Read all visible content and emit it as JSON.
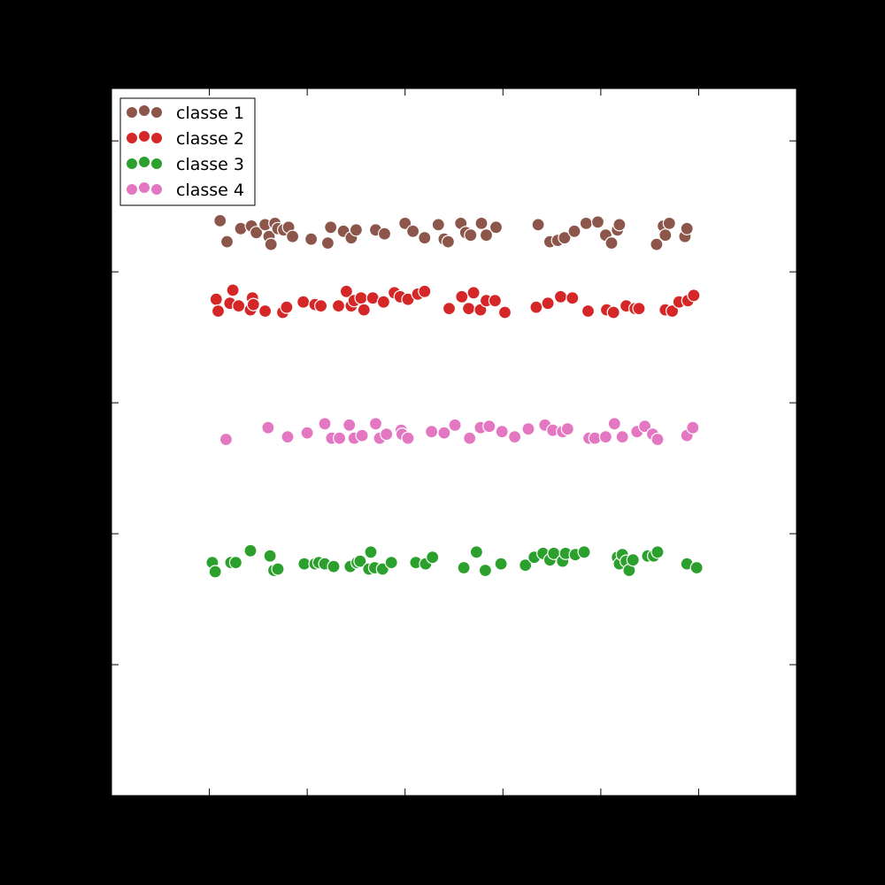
{
  "chart_data": {
    "type": "scatter",
    "xlim": [
      -1,
      6
    ],
    "ylim": [
      0,
      5.4
    ],
    "xticks": [
      0,
      1,
      2,
      3,
      4,
      5
    ],
    "yticks": [
      1,
      2,
      3,
      4,
      5
    ],
    "tick_labels_visible": false,
    "grid": false,
    "legend": "top-left",
    "series": [
      {
        "name": "classe 1",
        "color": "#8c564b",
        "points": [
          [
            0.11,
            4.39
          ],
          [
            0.18,
            4.23
          ],
          [
            0.32,
            4.33
          ],
          [
            0.43,
            4.35
          ],
          [
            0.48,
            4.3
          ],
          [
            0.57,
            4.36
          ],
          [
            0.61,
            4.27
          ],
          [
            0.63,
            4.21
          ],
          [
            0.67,
            4.37
          ],
          [
            0.7,
            4.33
          ],
          [
            0.76,
            4.32
          ],
          [
            0.81,
            4.34
          ],
          [
            0.85,
            4.27
          ],
          [
            1.04,
            4.25
          ],
          [
            1.21,
            4.22
          ],
          [
            1.24,
            4.34
          ],
          [
            1.37,
            4.31
          ],
          [
            1.45,
            4.26
          ],
          [
            1.5,
            4.32
          ],
          [
            1.7,
            4.32
          ],
          [
            1.79,
            4.29
          ],
          [
            2.0,
            4.37
          ],
          [
            2.08,
            4.31
          ],
          [
            2.2,
            4.26
          ],
          [
            2.34,
            4.36
          ],
          [
            2.4,
            4.25
          ],
          [
            2.44,
            4.23
          ],
          [
            2.57,
            4.37
          ],
          [
            2.62,
            4.3
          ],
          [
            2.67,
            4.28
          ],
          [
            2.78,
            4.37
          ],
          [
            2.83,
            4.28
          ],
          [
            2.93,
            4.34
          ],
          [
            3.36,
            4.36
          ],
          [
            3.48,
            4.23
          ],
          [
            3.56,
            4.24
          ],
          [
            3.63,
            4.26
          ],
          [
            3.73,
            4.31
          ],
          [
            3.85,
            4.37
          ],
          [
            3.97,
            4.38
          ],
          [
            4.05,
            4.28
          ],
          [
            4.11,
            4.22
          ],
          [
            4.17,
            4.32
          ],
          [
            4.19,
            4.36
          ],
          [
            4.57,
            4.21
          ],
          [
            4.64,
            4.35
          ],
          [
            4.66,
            4.28
          ],
          [
            4.7,
            4.37
          ],
          [
            4.86,
            4.27
          ],
          [
            4.88,
            4.33
          ]
        ]
      },
      {
        "name": "classe 2",
        "color": "#d62728",
        "points": [
          [
            0.07,
            3.79
          ],
          [
            0.09,
            3.7
          ],
          [
            0.21,
            3.76
          ],
          [
            0.24,
            3.86
          ],
          [
            0.3,
            3.74
          ],
          [
            0.42,
            3.71
          ],
          [
            0.44,
            3.8
          ],
          [
            0.45,
            3.75
          ],
          [
            0.57,
            3.7
          ],
          [
            0.75,
            3.69
          ],
          [
            0.79,
            3.73
          ],
          [
            0.96,
            3.77
          ],
          [
            1.08,
            3.75
          ],
          [
            1.14,
            3.74
          ],
          [
            1.32,
            3.74
          ],
          [
            1.4,
            3.85
          ],
          [
            1.45,
            3.74
          ],
          [
            1.48,
            3.78
          ],
          [
            1.55,
            3.8
          ],
          [
            1.58,
            3.71
          ],
          [
            1.67,
            3.8
          ],
          [
            1.78,
            3.77
          ],
          [
            1.89,
            3.84
          ],
          [
            1.95,
            3.81
          ],
          [
            2.03,
            3.79
          ],
          [
            2.13,
            3.83
          ],
          [
            2.2,
            3.85
          ],
          [
            2.45,
            3.72
          ],
          [
            2.58,
            3.81
          ],
          [
            2.65,
            3.72
          ],
          [
            2.7,
            3.84
          ],
          [
            2.77,
            3.71
          ],
          [
            2.83,
            3.78
          ],
          [
            2.92,
            3.78
          ],
          [
            3.02,
            3.69
          ],
          [
            3.34,
            3.73
          ],
          [
            3.46,
            3.76
          ],
          [
            3.59,
            3.81
          ],
          [
            3.71,
            3.8
          ],
          [
            3.87,
            3.7
          ],
          [
            4.06,
            3.71
          ],
          [
            4.13,
            3.69
          ],
          [
            4.26,
            3.74
          ],
          [
            4.35,
            3.72
          ],
          [
            4.39,
            3.72
          ],
          [
            4.66,
            3.71
          ],
          [
            4.73,
            3.7
          ],
          [
            4.8,
            3.77
          ],
          [
            4.89,
            3.78
          ],
          [
            4.95,
            3.82
          ]
        ]
      },
      {
        "name": "classe 3",
        "color": "#2ca02c",
        "points": [
          [
            0.03,
            1.78
          ],
          [
            0.06,
            1.71
          ],
          [
            0.22,
            1.78
          ],
          [
            0.27,
            1.78
          ],
          [
            0.42,
            1.87
          ],
          [
            0.62,
            1.83
          ],
          [
            0.66,
            1.72
          ],
          [
            0.7,
            1.73
          ],
          [
            0.97,
            1.77
          ],
          [
            1.08,
            1.77
          ],
          [
            1.12,
            1.78
          ],
          [
            1.18,
            1.77
          ],
          [
            1.27,
            1.75
          ],
          [
            1.44,
            1.75
          ],
          [
            1.51,
            1.78
          ],
          [
            1.54,
            1.79
          ],
          [
            1.63,
            1.73
          ],
          [
            1.65,
            1.86
          ],
          [
            1.69,
            1.74
          ],
          [
            1.77,
            1.73
          ],
          [
            1.86,
            1.78
          ],
          [
            2.11,
            1.78
          ],
          [
            2.21,
            1.77
          ],
          [
            2.28,
            1.82
          ],
          [
            2.6,
            1.74
          ],
          [
            2.73,
            1.86
          ],
          [
            2.82,
            1.72
          ],
          [
            2.98,
            1.77
          ],
          [
            3.23,
            1.76
          ],
          [
            3.32,
            1.82
          ],
          [
            3.41,
            1.85
          ],
          [
            3.48,
            1.8
          ],
          [
            3.52,
            1.85
          ],
          [
            3.61,
            1.79
          ],
          [
            3.64,
            1.85
          ],
          [
            3.74,
            1.84
          ],
          [
            3.83,
            1.86
          ],
          [
            4.17,
            1.82
          ],
          [
            4.19,
            1.77
          ],
          [
            4.22,
            1.84
          ],
          [
            4.26,
            1.79
          ],
          [
            4.29,
            1.72
          ],
          [
            4.33,
            1.8
          ],
          [
            4.48,
            1.83
          ],
          [
            4.54,
            1.83
          ],
          [
            4.58,
            1.86
          ],
          [
            4.88,
            1.77
          ],
          [
            4.98,
            1.74
          ]
        ]
      },
      {
        "name": "classe 4",
        "color": "#e377c2",
        "points": [
          [
            0.17,
            2.72
          ],
          [
            0.6,
            2.81
          ],
          [
            0.8,
            2.74
          ],
          [
            1.0,
            2.77
          ],
          [
            1.18,
            2.84
          ],
          [
            1.25,
            2.73
          ],
          [
            1.33,
            2.73
          ],
          [
            1.43,
            2.83
          ],
          [
            1.48,
            2.73
          ],
          [
            1.56,
            2.75
          ],
          [
            1.7,
            2.84
          ],
          [
            1.74,
            2.73
          ],
          [
            1.81,
            2.76
          ],
          [
            1.96,
            2.79
          ],
          [
            1.97,
            2.76
          ],
          [
            2.03,
            2.73
          ],
          [
            2.27,
            2.78
          ],
          [
            2.4,
            2.77
          ],
          [
            2.51,
            2.83
          ],
          [
            2.66,
            2.73
          ],
          [
            2.77,
            2.81
          ],
          [
            2.86,
            2.82
          ],
          [
            2.99,
            2.78
          ],
          [
            3.12,
            2.74
          ],
          [
            3.26,
            2.8
          ],
          [
            3.43,
            2.83
          ],
          [
            3.51,
            2.79
          ],
          [
            3.61,
            2.78
          ],
          [
            3.66,
            2.8
          ],
          [
            3.88,
            2.73
          ],
          [
            3.94,
            2.73
          ],
          [
            4.05,
            2.74
          ],
          [
            4.14,
            2.84
          ],
          [
            4.22,
            2.74
          ],
          [
            4.37,
            2.78
          ],
          [
            4.45,
            2.82
          ],
          [
            4.53,
            2.76
          ],
          [
            4.58,
            2.72
          ],
          [
            4.88,
            2.75
          ],
          [
            4.94,
            2.81
          ]
        ]
      }
    ]
  }
}
